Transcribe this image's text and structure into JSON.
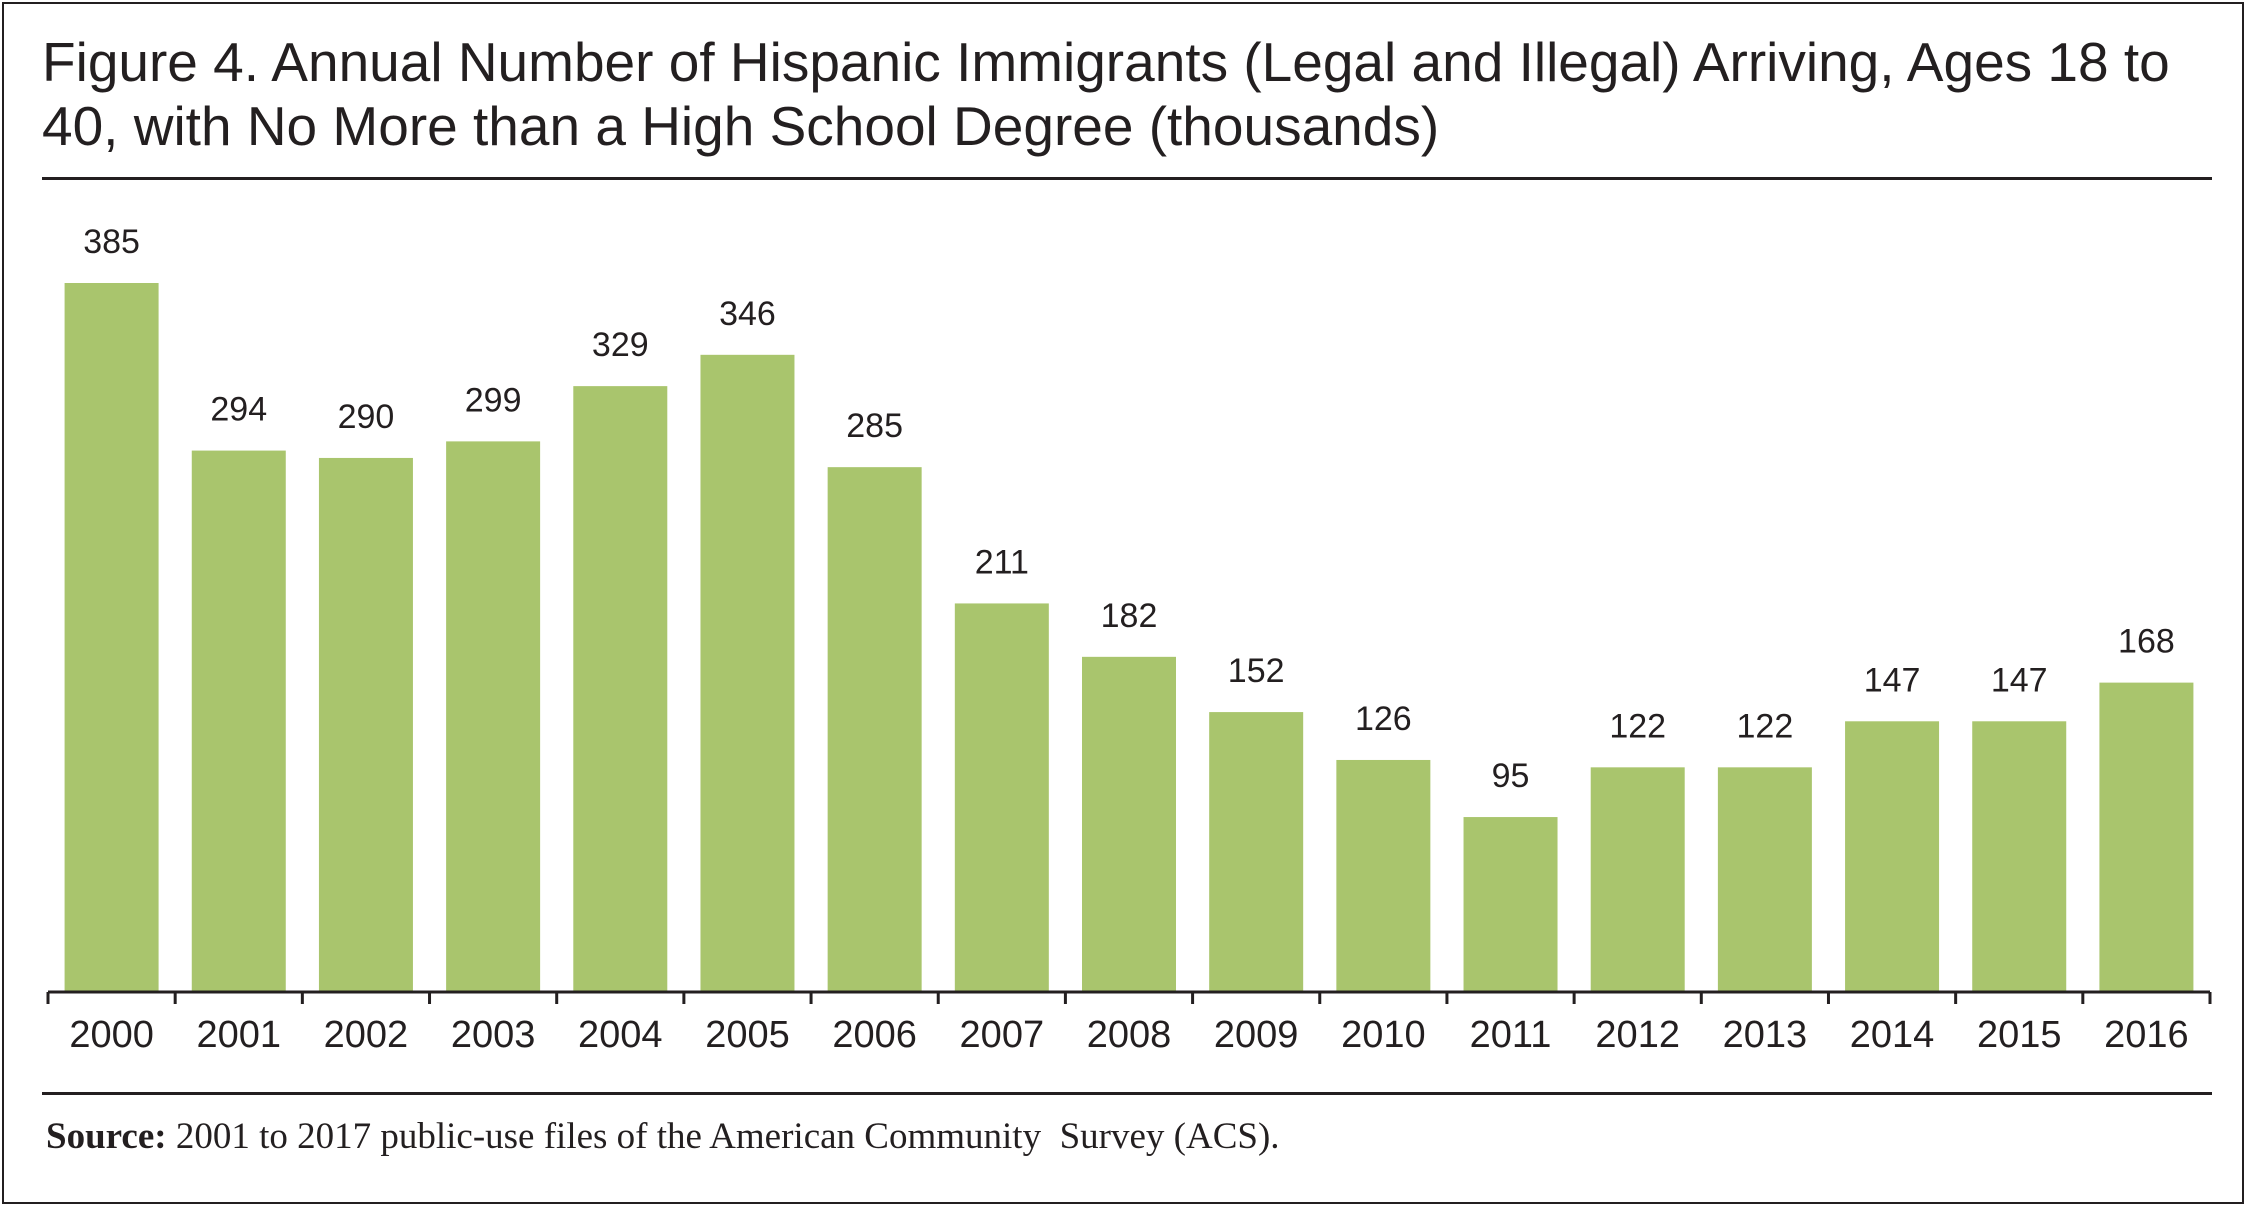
{
  "title": "Figure 4. Annual Number of Hispanic Immigrants (Legal and Illegal) Arriving, Ages 18 to 40, with No More than a High School Degree (thousands)",
  "source": {
    "label": "Source:",
    "text": " 2001 to 2017 public-use files of the American Community  Survey (ACS)."
  },
  "colors": {
    "bar": "#a9c56d",
    "text": "#231f20"
  },
  "chart_data": {
    "type": "bar",
    "title": "Figure 4. Annual Number of Hispanic Immigrants (Legal and Illegal) Arriving, Ages 18 to 40, with No More than a High School Degree (thousands)",
    "categories": [
      "2000",
      "2001",
      "2002",
      "2003",
      "2004",
      "2005",
      "2006",
      "2007",
      "2008",
      "2009",
      "2010",
      "2011",
      "2012",
      "2013",
      "2014",
      "2015",
      "2016"
    ],
    "values": [
      385,
      294,
      290,
      299,
      329,
      346,
      285,
      211,
      182,
      152,
      126,
      95,
      122,
      122,
      147,
      147,
      168
    ],
    "xlabel": "",
    "ylabel": "",
    "ylim": [
      0,
      385
    ],
    "grid": false,
    "legend": "none",
    "data_labels": true
  }
}
